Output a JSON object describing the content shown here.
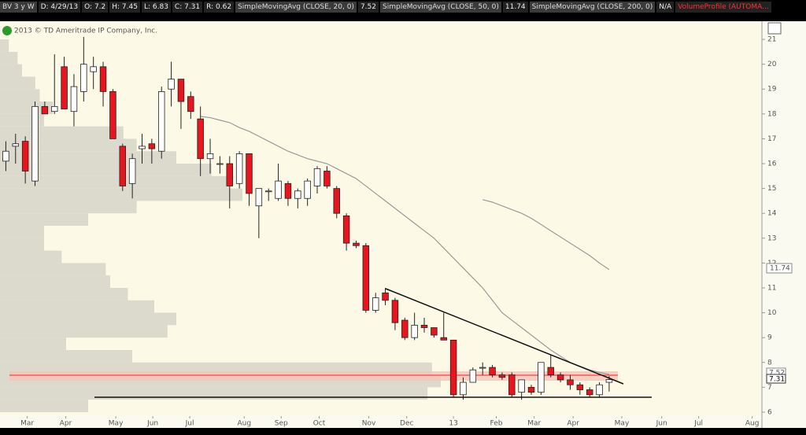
{
  "chart_data": {
    "type": "candlestick",
    "symbol": "BV 3 y W",
    "info": [
      "D: 4/29/13",
      "O: 7.2",
      "H: 7.45",
      "L: 6.83",
      "C: 7.31",
      "R: 0.62"
    ],
    "copyright": "2013 © TD Ameritrade IP Company, Inc.",
    "indicator": "VolumeProfile (AUTOMA...",
    "open": [
      16.1,
      16.7,
      16.9,
      15.3,
      18.3,
      18.1,
      19.9,
      18.1,
      18.9,
      19.7,
      19.9,
      18.9,
      16.7,
      15.2,
      16.6,
      16.8,
      16.5,
      19.0,
      19.4,
      18.7,
      17.8,
      16.2,
      16.0,
      16.0,
      15.2,
      16.4,
      14.3,
      14.9,
      14.6,
      15.2,
      14.6,
      14.6,
      15.1,
      15.7,
      15.0,
      13.9,
      12.8,
      12.7,
      10.1,
      10.8,
      10.5,
      9.7,
      9.0,
      9.5,
      9.4,
      9.0,
      8.9,
      6.7,
      7.2,
      7.8,
      7.8,
      7.5,
      7.5,
      6.8,
      7.0,
      6.8,
      7.8,
      7.5,
      7.3,
      7.1,
      6.9,
      6.7,
      7.2
    ],
    "high": [
      16.9,
      17.2,
      17.1,
      18.5,
      18.5,
      20.4,
      20.3,
      19.6,
      21.1,
      20.3,
      20.1,
      19.0,
      16.8,
      16.4,
      17.2,
      17.0,
      19.1,
      20.1,
      19.4,
      18.9,
      18.3,
      17.0,
      16.3,
      16.3,
      16.5,
      16.4,
      15.0,
      15.0,
      16.0,
      15.3,
      15.0,
      15.4,
      15.9,
      15.9,
      15.1,
      14.0,
      12.9,
      12.8,
      10.8,
      11.0,
      10.6,
      9.8,
      10.0,
      9.8,
      9.4,
      10.0,
      8.9,
      7.4,
      7.8,
      8.0,
      7.9,
      7.6,
      7.6,
      7.3,
      7.1,
      8.0,
      8.3,
      7.6,
      7.5,
      7.2,
      7.0,
      7.2,
      7.45
    ],
    "low": [
      15.7,
      16.0,
      15.2,
      15.1,
      18.0,
      18.0,
      18.2,
      17.5,
      18.5,
      19.0,
      18.3,
      17.0,
      14.9,
      14.6,
      16.0,
      16.0,
      16.2,
      18.3,
      17.4,
      17.8,
      15.5,
      15.6,
      15.6,
      14.2,
      15.0,
      14.3,
      13.0,
      14.5,
      14.5,
      14.3,
      14.2,
      14.3,
      14.8,
      15.0,
      13.8,
      12.5,
      12.6,
      10.0,
      10.0,
      10.3,
      9.3,
      8.9,
      8.9,
      9.2,
      9.0,
      8.9,
      6.6,
      6.5,
      7.2,
      7.5,
      7.4,
      7.3,
      6.6,
      6.5,
      6.7,
      6.7,
      7.4,
      7.2,
      6.9,
      6.7,
      6.6,
      6.6,
      6.83
    ],
    "close": [
      16.5,
      16.8,
      15.7,
      18.3,
      18.0,
      18.3,
      18.2,
      19.1,
      20.0,
      19.9,
      18.9,
      17.0,
      15.1,
      16.2,
      16.7,
      16.6,
      18.9,
      19.4,
      18.5,
      18.1,
      16.2,
      16.4,
      16.0,
      15.1,
      16.4,
      14.8,
      15.0,
      14.9,
      15.3,
      14.6,
      14.9,
      15.3,
      15.8,
      15.1,
      14.0,
      12.8,
      12.7,
      10.1,
      10.6,
      10.5,
      9.6,
      9.0,
      9.5,
      9.4,
      9.1,
      8.9,
      6.7,
      7.2,
      7.7,
      7.8,
      7.5,
      7.4,
      6.7,
      7.3,
      6.8,
      8.0,
      7.5,
      7.3,
      7.1,
      6.9,
      6.7,
      7.1,
      7.31
    ],
    "up_color": "#ffffff",
    "down_color": "#e8141e",
    "series": [
      {
        "name": "SimpleMovingAvg (CLOSE, 20, 0)",
        "color": "#9a9a9a",
        "values": [
          null,
          null,
          null,
          null,
          null,
          null,
          null,
          null,
          null,
          null,
          null,
          null,
          null,
          null,
          null,
          null,
          null,
          null,
          null,
          null,
          17.9,
          17.85,
          17.75,
          17.65,
          17.45,
          17.3,
          17.1,
          16.9,
          16.7,
          16.5,
          16.35,
          16.2,
          16.1,
          16.0,
          15.8,
          15.6,
          15.4,
          15.1,
          14.8,
          14.5,
          14.2,
          13.9,
          13.6,
          13.3,
          13.0,
          12.6,
          12.2,
          11.8,
          11.4,
          11.0,
          10.5,
          10.0,
          9.7,
          9.4,
          9.1,
          8.8,
          8.5,
          8.25,
          8.0,
          7.85,
          7.7,
          7.6,
          7.52
        ]
      },
      {
        "name": "SimpleMovingAvg (CLOSE, 50, 0)",
        "color": "#9a9a9a",
        "values": [
          null,
          null,
          null,
          null,
          null,
          null,
          null,
          null,
          null,
          null,
          null,
          null,
          null,
          null,
          null,
          null,
          null,
          null,
          null,
          null,
          null,
          null,
          null,
          null,
          null,
          null,
          null,
          null,
          null,
          null,
          null,
          null,
          null,
          null,
          null,
          null,
          null,
          null,
          null,
          null,
          null,
          null,
          null,
          null,
          null,
          null,
          null,
          null,
          null,
          14.55,
          14.45,
          14.3,
          14.15,
          14.0,
          13.8,
          13.55,
          13.3,
          13.05,
          12.8,
          12.55,
          12.3,
          12.0,
          11.74
        ]
      },
      {
        "name": "SimpleMovingAvg (CLOSE, 200, 0)",
        "status": "N/A"
      }
    ],
    "volume_profile": {
      "color": "#dcd9cd",
      "levels": [
        6.0,
        6.5,
        7.0,
        7.5,
        8.0,
        8.5,
        9.0,
        9.5,
        10.0,
        10.5,
        11.0,
        11.5,
        12.0,
        12.5,
        13.0,
        13.5,
        14.0,
        14.5,
        15.0,
        15.5,
        16.0,
        16.5,
        17.0,
        17.5,
        18.0,
        18.5,
        19.0,
        19.5,
        20.0,
        20.5
      ],
      "values": [
        20,
        97,
        100,
        98,
        30,
        15,
        38,
        40,
        35,
        29,
        25,
        24,
        14,
        10,
        10,
        20,
        31,
        55,
        52,
        48,
        40,
        31,
        28,
        10,
        12,
        9,
        8,
        5,
        4,
        2
      ]
    },
    "xlim": [
      -0.6,
      77.7
    ],
    "ylim": [
      5.84,
      21.73
    ],
    "yticks": [
      6,
      7,
      8,
      9,
      10,
      11,
      12,
      13,
      14,
      15,
      16,
      17,
      18,
      19,
      20,
      21
    ],
    "xticks": [
      {
        "value": 2.2,
        "label": "Mar"
      },
      {
        "value": 6.15,
        "label": "Apr"
      },
      {
        "value": 11.3,
        "label": "May"
      },
      {
        "value": 15.1,
        "label": "Jun"
      },
      {
        "value": 18.9,
        "label": "Jul"
      },
      {
        "value": 24.5,
        "label": "Aug"
      },
      {
        "value": 28.3,
        "label": "Sep"
      },
      {
        "value": 32.2,
        "label": "Oct"
      },
      {
        "value": 37.3,
        "label": "Nov"
      },
      {
        "value": 41.2,
        "label": "Dec"
      },
      {
        "value": 46,
        "label": "13"
      },
      {
        "value": 50.4,
        "label": "Feb"
      },
      {
        "value": 54.3,
        "label": "Mar"
      },
      {
        "value": 58.3,
        "label": "Apr"
      },
      {
        "value": 63.3,
        "label": "May"
      },
      {
        "value": 67.4,
        "label": "Jun"
      },
      {
        "value": 71.2,
        "label": "Jul"
      },
      {
        "value": 76.7,
        "label": "Aug"
      }
    ]
  }
}
